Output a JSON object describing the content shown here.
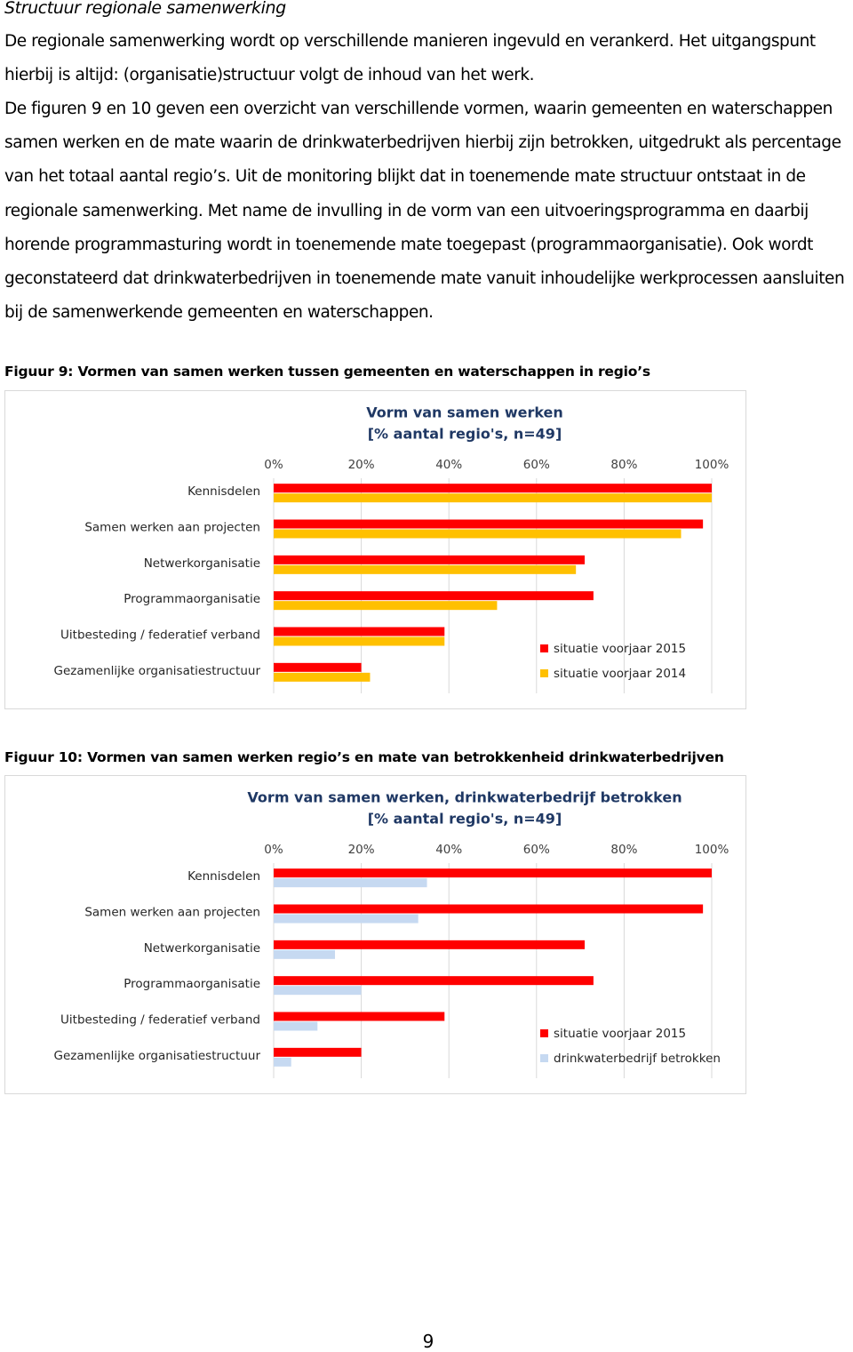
{
  "heading": "Structuur regionale samenwerking",
  "paragraphs": [
    "De regionale samenwerking wordt op verschillende manieren ingevuld en verankerd. Het uitgangspunt hierbij is altijd: (organisatie)structuur volgt de inhoud van het werk.",
    "De figuren 9 en 10 geven een overzicht van verschillende vormen, waarin gemeenten en waterschappen samen werken en de mate waarin de drinkwaterbedrijven hierbij zijn betrokken, uitgedrukt als percentage van het totaal aantal regio’s. Uit de monitoring blijkt dat in toenemende mate structuur ontstaat in de regionale samenwerking. Met name de invulling in de vorm van een uitvoeringsprogramma en daarbij horende programmasturing wordt in toenemende mate toegepast (programmaorganisatie). Ook wordt geconstateerd dat drinkwaterbedrijven in toenemende mate vanuit inhoudelijke werkprocessen aansluiten bij de samenwerkende gemeenten en waterschappen."
  ],
  "captions": [
    "Figuur 9: Vormen van samen werken tussen gemeenten en waterschappen in regio’s",
    "Figuur 10: Vormen van samen werken regio’s en mate van betrokkenheid drinkwaterbedrijven"
  ],
  "chart_data": [
    {
      "type": "bar",
      "orientation": "horizontal",
      "title": "Vorm van samen werken",
      "subtitle": "[% aantal regio's, n=49]",
      "categories": [
        "Kennisdelen",
        "Samen werken aan projecten",
        "Netwerkorganisatie",
        "Programmaorganisatie",
        "Uitbesteding / federatief verband",
        "Gezamenlijke organisatiestructuur"
      ],
      "series": [
        {
          "name": "situatie voorjaar 2015",
          "color": "#ff0000",
          "values": [
            100,
            98,
            71,
            73,
            39,
            20
          ]
        },
        {
          "name": "situatie voorjaar 2014",
          "color": "#ffc000",
          "values": [
            100,
            93,
            69,
            51,
            39,
            22
          ]
        }
      ],
      "xlim": [
        0,
        100
      ],
      "xticks": [
        {
          "value": 0,
          "label": "0%"
        },
        {
          "value": 20,
          "label": "20%"
        },
        {
          "value": 40,
          "label": "40%"
        },
        {
          "value": 60,
          "label": "60%"
        },
        {
          "value": 80,
          "label": "80%"
        },
        {
          "value": 100,
          "label": "100%"
        }
      ],
      "grid": true,
      "legend": "lower right"
    },
    {
      "type": "bar",
      "orientation": "horizontal",
      "title": "Vorm van samen werken, drinkwaterbedrijf betrokken",
      "subtitle": "[% aantal regio's, n=49]",
      "categories": [
        "Kennisdelen",
        "Samen werken aan projecten",
        "Netwerkorganisatie",
        "Programmaorganisatie",
        "Uitbesteding / federatief verband",
        "Gezamenlijke organisatiestructuur"
      ],
      "series": [
        {
          "name": "situatie voorjaar 2015",
          "color": "#ff0000",
          "values": [
            100,
            98,
            71,
            73,
            39,
            20
          ]
        },
        {
          "name": "drinkwaterbedrijf betrokken",
          "color": "#c6d9f1",
          "values": [
            35,
            33,
            14,
            20,
            10,
            4
          ]
        }
      ],
      "xlim": [
        0,
        100
      ],
      "xticks": [
        {
          "value": 0,
          "label": "0%"
        },
        {
          "value": 20,
          "label": "20%"
        },
        {
          "value": 40,
          "label": "40%"
        },
        {
          "value": 60,
          "label": "60%"
        },
        {
          "value": 80,
          "label": "80%"
        },
        {
          "value": 100,
          "label": "100%"
        }
      ],
      "grid": true,
      "legend": "lower right"
    }
  ],
  "page_number": 9
}
